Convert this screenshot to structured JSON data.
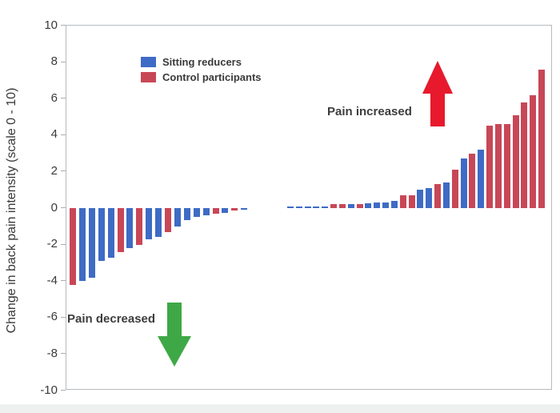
{
  "chart_data": {
    "type": "bar",
    "title": "",
    "xlabel": "",
    "ylabel": "Change in back pain intensity (scale 0 - 10)",
    "ylim": [
      -10,
      10
    ],
    "yticks": [
      10,
      8,
      6,
      4,
      2,
      0,
      -2,
      -4,
      -6,
      -8,
      -10
    ],
    "grid": "off",
    "legend": {
      "position": "top-left",
      "entries": [
        {
          "series": "S",
          "label": "Sitting reducers",
          "color": "#3E6BC5"
        },
        {
          "series": "C",
          "label": "Control participants",
          "color": "#C84757"
        }
      ]
    },
    "annotations": [
      {
        "text": "Pain decreased",
        "arrow": "down",
        "arrow_color": "#3FA846"
      },
      {
        "text": "Pain increased",
        "arrow": "up",
        "arrow_color": "#E8192C"
      }
    ],
    "groups": [
      {
        "name": "pain_decreased",
        "bars": [
          [
            -4.2,
            "C"
          ],
          [
            -4.0,
            "S"
          ],
          [
            -3.8,
            "S"
          ],
          [
            -2.9,
            "S"
          ],
          [
            -2.7,
            "S"
          ],
          [
            -2.4,
            "C"
          ],
          [
            -2.2,
            "S"
          ],
          [
            -2.0,
            "C"
          ],
          [
            -1.7,
            "S"
          ],
          [
            -1.6,
            "S"
          ],
          [
            -1.3,
            "C"
          ],
          [
            -1.0,
            "S"
          ],
          [
            -0.65,
            "S"
          ],
          [
            -0.5,
            "S"
          ],
          [
            -0.4,
            "S"
          ],
          [
            -0.3,
            "C"
          ],
          [
            -0.25,
            "S"
          ],
          [
            -0.15,
            "C"
          ],
          [
            -0.1,
            "S"
          ]
        ]
      },
      {
        "name": "pain_increased",
        "bars": [
          [
            0.1,
            "S"
          ],
          [
            0.1,
            "S"
          ],
          [
            0.1,
            "S"
          ],
          [
            0.1,
            "S"
          ],
          [
            0.1,
            "S"
          ],
          [
            0.2,
            "C"
          ],
          [
            0.2,
            "C"
          ],
          [
            0.2,
            "S"
          ],
          [
            0.2,
            "C"
          ],
          [
            0.25,
            "S"
          ],
          [
            0.3,
            "S"
          ],
          [
            0.3,
            "S"
          ],
          [
            0.4,
            "S"
          ],
          [
            0.7,
            "C"
          ],
          [
            0.7,
            "C"
          ],
          [
            1.0,
            "S"
          ],
          [
            1.1,
            "S"
          ],
          [
            1.3,
            "C"
          ],
          [
            1.4,
            "S"
          ],
          [
            2.1,
            "C"
          ],
          [
            2.7,
            "S"
          ],
          [
            3.0,
            "C"
          ],
          [
            3.2,
            "S"
          ],
          [
            4.5,
            "C"
          ],
          [
            4.6,
            "C"
          ],
          [
            4.6,
            "C"
          ],
          [
            5.1,
            "C"
          ],
          [
            5.8,
            "C"
          ],
          [
            6.2,
            "C"
          ],
          [
            7.6,
            "C"
          ]
        ]
      }
    ]
  },
  "colors": {
    "sitting_reducers": "#3E6BC5",
    "control_participants": "#C84757",
    "green_arrow": "#3FA846",
    "red_arrow": "#E8192C",
    "axis": "#B6BBBF",
    "text": "#3D3D3D"
  }
}
